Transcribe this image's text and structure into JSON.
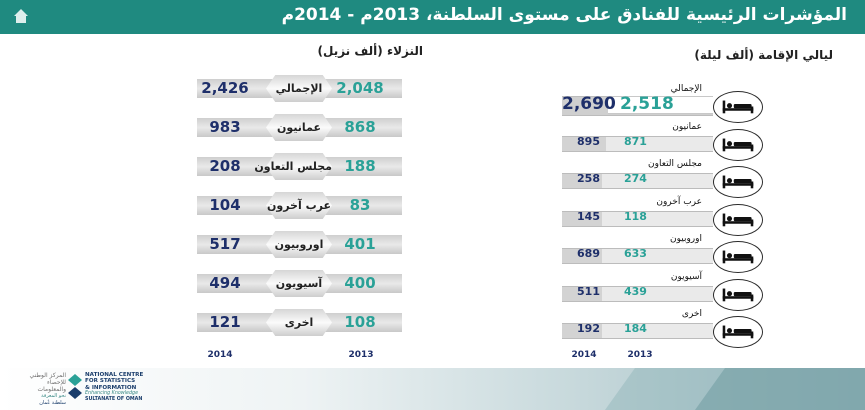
{
  "title": "المؤشرات الرئيسية للفنادق على مستوى السلطنة، 2013م - 2014م",
  "colors": {
    "header": "#1f8a80",
    "year_2013": "#2aa197",
    "year_2014": "#1e2f6a"
  },
  "logo": {
    "arabic_lines": [
      "المركز الوطني",
      "للإحصاء",
      "والمعلومات"
    ],
    "arabic_tagline": "نحو المعرفة",
    "arabic_country": "سلطنة عُمان",
    "english_lines": [
      "NATIONAL CENTRE",
      "FOR STATISTICS",
      "& INFORMATION"
    ],
    "english_tagline": "Enhancing Knowledge",
    "english_country": "SULTANATE OF OMAN"
  },
  "chart_data": [
    {
      "type": "bar",
      "title": "النزلاء (ألف نزيل)",
      "categories": [
        "الإجمالي",
        "عمانيون",
        "مجلس التعاون",
        "عرب آخرون",
        "اوروبيون",
        "آسيويون",
        "اخرى"
      ],
      "series": [
        {
          "name": "2013",
          "values": [
            2048,
            868,
            188,
            83,
            401,
            400,
            108
          ],
          "labels": [
            "2,048",
            "868",
            "188",
            "83",
            "401",
            "400",
            "108"
          ]
        },
        {
          "name": "2014",
          "values": [
            2426,
            983,
            208,
            104,
            517,
            494,
            121
          ],
          "labels": [
            "2,426",
            "983",
            "208",
            "104",
            "517",
            "494",
            "121"
          ]
        }
      ]
    },
    {
      "type": "bar",
      "title": "ليالي الإقامة (ألف ليلة)",
      "categories": [
        "الإجمالي",
        "عمانيون",
        "مجلس التعاون",
        "عرب آخرون",
        "اوروبيون",
        "آسيويون",
        "اخرى"
      ],
      "series": [
        {
          "name": "2013",
          "values": [
            2518,
            871,
            274,
            118,
            633,
            439,
            184
          ],
          "labels": [
            "2,518",
            "871",
            "274",
            "118",
            "633",
            "439",
            "184"
          ]
        },
        {
          "name": "2014",
          "values": [
            2690,
            895,
            258,
            145,
            689,
            511,
            192
          ],
          "labels": [
            "2,690",
            "895",
            "258",
            "145",
            "689",
            "511",
            "192"
          ]
        }
      ]
    }
  ]
}
